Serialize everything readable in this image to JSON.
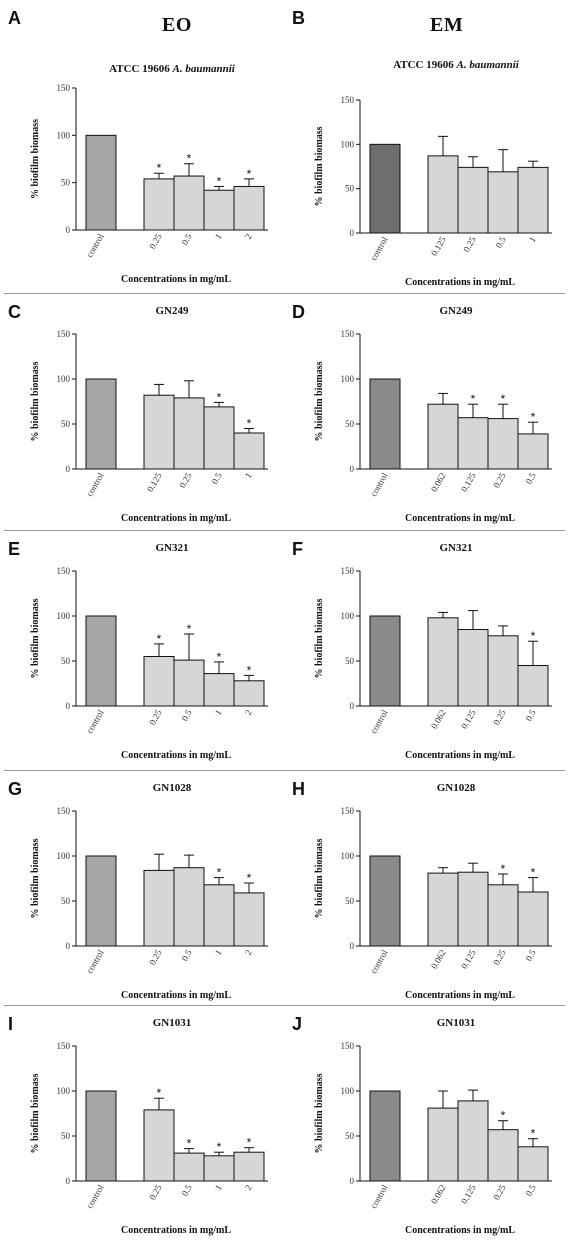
{
  "column_headers": {
    "left": "EO",
    "right": "EM"
  },
  "chart_data": [
    {
      "panel_letter": "A",
      "title": "ATCC 19606 ",
      "title_italic": "A. baumannii",
      "type": "bar",
      "categories": [
        "control",
        "0.25",
        "0.5",
        "1",
        "2"
      ],
      "values": [
        100,
        54,
        57,
        42,
        46
      ],
      "errors": [
        0,
        6,
        13,
        4,
        8
      ],
      "significant": [
        false,
        true,
        true,
        true,
        true
      ],
      "ylabel": "% biofilm biomass",
      "xlabel": "Concentrations in mg/mL",
      "yticks": [
        0,
        50,
        100,
        150
      ],
      "ylim": [
        0,
        150
      ],
      "colors": {
        "control": "#a6a6a6",
        "treatment": "#d6d6d6"
      }
    },
    {
      "panel_letter": "B",
      "title": "ATCC 19606 ",
      "title_italic": "A. baumannii",
      "type": "bar",
      "categories": [
        "control",
        "0.125",
        "0.25",
        "0.5",
        "1"
      ],
      "values": [
        100,
        87,
        74,
        69,
        74
      ],
      "errors": [
        0,
        22,
        12,
        25,
        7
      ],
      "significant": [
        false,
        false,
        false,
        false,
        false
      ],
      "ylabel": "% biofilm biomass",
      "xlabel": "Concentrations in mg/mL",
      "yticks": [
        0,
        50,
        100,
        150
      ],
      "ylim": [
        0,
        150
      ],
      "colors": {
        "control": "#6e6e6e",
        "treatment": "#d6d6d6"
      }
    },
    {
      "panel_letter": "C",
      "title": "GN249",
      "title_italic": "",
      "type": "bar",
      "categories": [
        "control",
        "0.125",
        "0.25",
        "0.5",
        "1"
      ],
      "values": [
        100,
        82,
        79,
        69,
        40
      ],
      "errors": [
        0,
        12,
        19,
        5,
        5
      ],
      "significant": [
        false,
        false,
        false,
        true,
        true
      ],
      "ylabel": "% biofilm biomass",
      "xlabel": "Concentrations in mg/mL",
      "yticks": [
        0,
        50,
        100,
        150
      ],
      "ylim": [
        0,
        150
      ],
      "colors": {
        "control": "#a6a6a6",
        "treatment": "#d6d6d6"
      }
    },
    {
      "panel_letter": "D",
      "title": "GN249",
      "title_italic": "",
      "type": "bar",
      "categories": [
        "control",
        "0.062",
        "0.125",
        "0.25",
        "0.5"
      ],
      "values": [
        100,
        72,
        57,
        56,
        39
      ],
      "errors": [
        0,
        12,
        15,
        16,
        13
      ],
      "significant": [
        false,
        false,
        true,
        true,
        true
      ],
      "ylabel": "% biofilm biomass",
      "xlabel": "Concentrations in mg/mL",
      "yticks": [
        0,
        50,
        100,
        150
      ],
      "ylim": [
        0,
        150
      ],
      "colors": {
        "control": "#8a8a8a",
        "treatment": "#d6d6d6"
      }
    },
    {
      "panel_letter": "E",
      "title": "GN321",
      "title_italic": "",
      "type": "bar",
      "categories": [
        "control",
        "0.25",
        "0.5",
        "1",
        "2"
      ],
      "values": [
        100,
        55,
        51,
        36,
        28
      ],
      "errors": [
        0,
        14,
        29,
        13,
        6
      ],
      "significant": [
        false,
        true,
        true,
        true,
        true
      ],
      "ylabel": "% biofilm biomass",
      "xlabel": "Concentrations in mg/mL",
      "yticks": [
        0,
        50,
        100,
        150
      ],
      "ylim": [
        0,
        150
      ],
      "colors": {
        "control": "#a6a6a6",
        "treatment": "#d6d6d6"
      }
    },
    {
      "panel_letter": "F",
      "title": "GN321",
      "title_italic": "",
      "type": "bar",
      "categories": [
        "control",
        "0.062",
        "0.125",
        "0.25",
        "0.5"
      ],
      "values": [
        100,
        98,
        85,
        78,
        45
      ],
      "errors": [
        0,
        6,
        21,
        11,
        27
      ],
      "significant": [
        false,
        false,
        false,
        false,
        true
      ],
      "ylabel": "% biofilm biomass",
      "xlabel": "Concentrations in mg/mL",
      "yticks": [
        0,
        50,
        100,
        150
      ],
      "ylim": [
        0,
        150
      ],
      "colors": {
        "control": "#8a8a8a",
        "treatment": "#d6d6d6"
      }
    },
    {
      "panel_letter": "G",
      "title": "GN1028",
      "title_italic": "",
      "type": "bar",
      "categories": [
        "control",
        "0.25",
        "0.5",
        "1",
        "2"
      ],
      "values": [
        100,
        84,
        87,
        68,
        59
      ],
      "errors": [
        0,
        18,
        14,
        8,
        11
      ],
      "significant": [
        false,
        false,
        false,
        true,
        true
      ],
      "ylabel": "% biofilm biomass",
      "xlabel": "Concentrations in mg/mL",
      "yticks": [
        0,
        50,
        100,
        150
      ],
      "ylim": [
        0,
        150
      ],
      "colors": {
        "control": "#a6a6a6",
        "treatment": "#d6d6d6"
      }
    },
    {
      "panel_letter": "H",
      "title": "GN1028",
      "title_italic": "",
      "type": "bar",
      "categories": [
        "control",
        "0.062",
        "0.125",
        "0.25",
        "0.5"
      ],
      "values": [
        100,
        81,
        82,
        68,
        60
      ],
      "errors": [
        0,
        6,
        10,
        12,
        16
      ],
      "significant": [
        false,
        false,
        false,
        true,
        true
      ],
      "ylabel": "% biofilm biomass",
      "xlabel": "Concentrations in mg/mL",
      "yticks": [
        0,
        50,
        100,
        150
      ],
      "ylim": [
        0,
        150
      ],
      "colors": {
        "control": "#8a8a8a",
        "treatment": "#d6d6d6"
      }
    },
    {
      "panel_letter": "I",
      "title": "GN1031",
      "title_italic": "",
      "type": "bar",
      "categories": [
        "control",
        "0.25",
        "0.5",
        "1",
        "2"
      ],
      "values": [
        100,
        79,
        31,
        28,
        32
      ],
      "errors": [
        0,
        13,
        5,
        4,
        5
      ],
      "significant": [
        false,
        true,
        true,
        true,
        true
      ],
      "ylabel": "% biofilm biomass",
      "xlabel": "Concentrations in mg/mL",
      "yticks": [
        0,
        50,
        100,
        150
      ],
      "ylim": [
        0,
        150
      ],
      "colors": {
        "control": "#a6a6a6",
        "treatment": "#d6d6d6"
      }
    },
    {
      "panel_letter": "J",
      "title": "GN1031",
      "title_italic": "",
      "type": "bar",
      "categories": [
        "control",
        "0.062",
        "0.125",
        "0.25",
        "0.5"
      ],
      "values": [
        100,
        81,
        89,
        57,
        38
      ],
      "errors": [
        0,
        19,
        12,
        10,
        9
      ],
      "significant": [
        false,
        false,
        false,
        true,
        true
      ],
      "ylabel": "% biofilm biomass",
      "xlabel": "Concentrations in mg/mL",
      "yticks": [
        0,
        50,
        100,
        150
      ],
      "ylim": [
        0,
        150
      ],
      "colors": {
        "control": "#8a8a8a",
        "treatment": "#d6d6d6"
      }
    }
  ]
}
